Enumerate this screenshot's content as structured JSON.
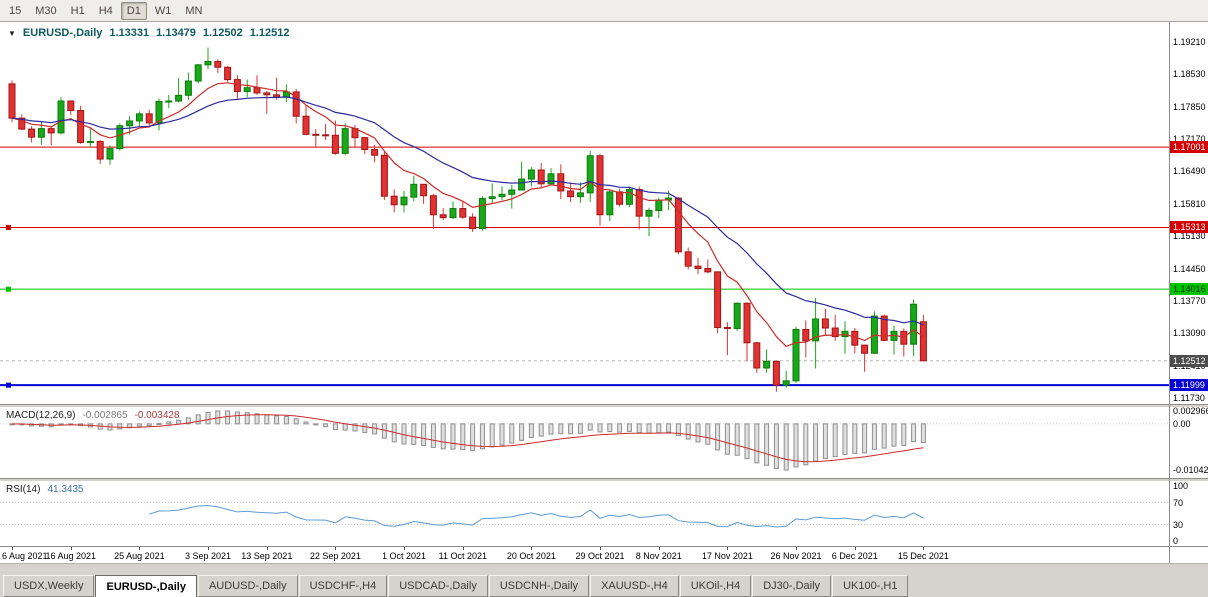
{
  "toolbar": {
    "timeframes": [
      "15",
      "M30",
      "H1",
      "H4",
      "D1",
      "W1",
      "MN"
    ],
    "active": "D1"
  },
  "chart_header": {
    "collapse_icon": "▼",
    "title": "EURUSD-,Daily",
    "open": "1.13331",
    "high": "1.13479",
    "low": "1.12502",
    "close": "1.12512"
  },
  "bottom_tabs": [
    {
      "label": "USDX,Weekly",
      "active": false
    },
    {
      "label": "EURUSD-,Daily",
      "active": true
    },
    {
      "label": "AUDUSD-,Daily",
      "active": false
    },
    {
      "label": "USDCHF-,H4",
      "active": false
    },
    {
      "label": "USDCAD-,Daily",
      "active": false
    },
    {
      "label": "USDCNH-,Daily",
      "active": false
    },
    {
      "label": "XAUUSD-,H4",
      "active": false
    },
    {
      "label": "UKOil-,H4",
      "active": false
    },
    {
      "label": "DJ30-,Daily",
      "active": false
    },
    {
      "label": "UK100-,H1",
      "active": false
    }
  ],
  "chart_data": {
    "type": "candlestick",
    "symbol": "EURUSD-",
    "period": "Daily",
    "bars": 94,
    "ylim": [
      1.116,
      1.1963
    ],
    "grid": false,
    "candle_colors": {
      "up": "#19a819",
      "up_border": "#0c7a0c",
      "down": "#e03232",
      "down_border": "#a31414"
    },
    "y_axis_ticks": [
      "1.19210",
      "1.18530",
      "1.17850",
      "1.17170",
      "1.16490",
      "1.15810",
      "1.15130",
      "1.14450",
      "1.13770",
      "1.13090",
      "1.12410",
      "1.11730"
    ],
    "x_tick_labels": [
      {
        "label": "6 Aug 2021",
        "bar": 0
      },
      {
        "label": "16 Aug 2021",
        "bar": 6
      },
      {
        "label": "25 Aug 2021",
        "bar": 13
      },
      {
        "label": "3 Sep 2021",
        "bar": 20
      },
      {
        "label": "13 Sep 2021",
        "bar": 26
      },
      {
        "label": "22 Sep 2021",
        "bar": 33
      },
      {
        "label": "1 Oct 2021",
        "bar": 40
      },
      {
        "label": "11 Oct 2021",
        "bar": 46
      },
      {
        "label": "20 Oct 2021",
        "bar": 53
      },
      {
        "label": "29 Oct 2021",
        "bar": 60
      },
      {
        "label": "8 Nov 2021",
        "bar": 66
      },
      {
        "label": "17 Nov 2021",
        "bar": 73
      },
      {
        "label": "26 Nov 2021",
        "bar": 80
      },
      {
        "label": "6 Dec 2021",
        "bar": 86
      },
      {
        "label": "15 Dec 2021",
        "bar": 93
      }
    ],
    "moving_averages": [
      {
        "kind": "ema",
        "period": 8,
        "color": "#cf2a27"
      },
      {
        "kind": "ema",
        "period": 20,
        "color": "#2b2ba0"
      }
    ],
    "horizontal_lines": [
      {
        "price": 1.17001,
        "label": "1.17001",
        "color": "#d40000",
        "tag_fg": "#ffffff",
        "width": 1,
        "marker": false
      },
      {
        "price": 1.15313,
        "label": "1.15313",
        "color": "#d40000",
        "tag_fg": "#ffffff",
        "width": 1,
        "marker": true
      },
      {
        "price": 1.14016,
        "label": "1.14016",
        "color": "#00c400",
        "tag_fg": "#003300",
        "width": 1,
        "marker": true
      },
      {
        "price": 1.11999,
        "label": "1.11999",
        "color": "#0000d4",
        "tag_fg": "#ffffff",
        "width": 2,
        "marker": true
      }
    ],
    "current_price": {
      "value": 1.12512,
      "label": "1.12512",
      "line_style": "dashed",
      "tag_bg": "#4d4d4d",
      "tag_fg": "#ffffff"
    },
    "indicators": {
      "macd": {
        "label": "MACD(12,26,9)",
        "params": [
          12,
          26,
          9
        ],
        "value_main": "-0.002865",
        "value_signal": "-0.003428",
        "axis_labels": [
          "0.002966",
          "0.00",
          "-0.01042"
        ],
        "histogram_fill": "#e0e0e0",
        "histogram_border": "#8f8f8f",
        "signal_color": "#cc2a2a"
      },
      "rsi": {
        "label": "RSI(14)",
        "period": 14,
        "value": "41.3435",
        "axis_labels": [
          "100",
          "70",
          "30",
          "0"
        ],
        "levels": [
          70,
          30
        ],
        "color": "#5b9bd5"
      }
    },
    "candles": [
      [
        1.1833,
        1.184,
        1.1752,
        1.1761
      ],
      [
        1.1761,
        1.1769,
        1.1736,
        1.1738
      ],
      [
        1.1738,
        1.1744,
        1.171,
        1.1721
      ],
      [
        1.1721,
        1.1753,
        1.1705,
        1.1739
      ],
      [
        1.1739,
        1.1742,
        1.1704,
        1.173
      ],
      [
        1.173,
        1.1805,
        1.1727,
        1.1797
      ],
      [
        1.1797,
        1.1797,
        1.1767,
        1.1777
      ],
      [
        1.1777,
        1.1787,
        1.1707,
        1.171
      ],
      [
        1.171,
        1.1742,
        1.17,
        1.1712
      ],
      [
        1.1712,
        1.1715,
        1.1665,
        1.1675
      ],
      [
        1.1675,
        1.1704,
        1.1663,
        1.1697
      ],
      [
        1.1697,
        1.175,
        1.1693,
        1.1745
      ],
      [
        1.1745,
        1.1765,
        1.1727,
        1.1755
      ],
      [
        1.1755,
        1.1775,
        1.1743,
        1.177
      ],
      [
        1.177,
        1.1779,
        1.1745,
        1.1751
      ],
      [
        1.1751,
        1.1802,
        1.1735,
        1.1796
      ],
      [
        1.1796,
        1.181,
        1.1782,
        1.1797
      ],
      [
        1.1797,
        1.1845,
        1.1794,
        1.1809
      ],
      [
        1.1809,
        1.1857,
        1.1799,
        1.1839
      ],
      [
        1.1839,
        1.1875,
        1.1834,
        1.1873
      ],
      [
        1.1873,
        1.1909,
        1.1864,
        1.188
      ],
      [
        1.188,
        1.1885,
        1.1856,
        1.1868
      ],
      [
        1.1868,
        1.187,
        1.1837,
        1.1842
      ],
      [
        1.1842,
        1.1851,
        1.1802,
        1.1817
      ],
      [
        1.1817,
        1.1842,
        1.1805,
        1.1825
      ],
      [
        1.1825,
        1.1851,
        1.181,
        1.1814
      ],
      [
        1.1814,
        1.1818,
        1.177,
        1.181
      ],
      [
        1.181,
        1.1846,
        1.18,
        1.1805
      ],
      [
        1.1805,
        1.1832,
        1.1795,
        1.1816
      ],
      [
        1.1816,
        1.1822,
        1.175,
        1.1765
      ],
      [
        1.1765,
        1.1788,
        1.1725,
        1.1727
      ],
      [
        1.1727,
        1.1738,
        1.17,
        1.1726
      ],
      [
        1.1726,
        1.1749,
        1.1715,
        1.1725
      ],
      [
        1.1725,
        1.1756,
        1.1684,
        1.1687
      ],
      [
        1.1687,
        1.175,
        1.1683,
        1.1739
      ],
      [
        1.1739,
        1.1747,
        1.1701,
        1.172
      ],
      [
        1.172,
        1.1722,
        1.1685,
        1.1695
      ],
      [
        1.1695,
        1.1705,
        1.1668,
        1.1683
      ],
      [
        1.1683,
        1.169,
        1.1589,
        1.1597
      ],
      [
        1.1597,
        1.1611,
        1.1563,
        1.1579
      ],
      [
        1.1579,
        1.1608,
        1.1563,
        1.1595
      ],
      [
        1.1595,
        1.164,
        1.1586,
        1.1622
      ],
      [
        1.1622,
        1.1622,
        1.1581,
        1.1598
      ],
      [
        1.1598,
        1.1602,
        1.1529,
        1.1558
      ],
      [
        1.1558,
        1.1572,
        1.1547,
        1.1552
      ],
      [
        1.1552,
        1.1586,
        1.1549,
        1.1571
      ],
      [
        1.1571,
        1.1586,
        1.1549,
        1.1553
      ],
      [
        1.1553,
        1.1561,
        1.1522,
        1.1529
      ],
      [
        1.1529,
        1.1597,
        1.1525,
        1.1592
      ],
      [
        1.1592,
        1.1624,
        1.1582,
        1.1596
      ],
      [
        1.1596,
        1.1618,
        1.1588,
        1.1601
      ],
      [
        1.1601,
        1.1621,
        1.1571,
        1.161
      ],
      [
        1.161,
        1.1669,
        1.1609,
        1.1633
      ],
      [
        1.1633,
        1.1658,
        1.1617,
        1.1652
      ],
      [
        1.1652,
        1.1667,
        1.1616,
        1.1623
      ],
      [
        1.1623,
        1.1656,
        1.162,
        1.1644
      ],
      [
        1.1644,
        1.1664,
        1.1591,
        1.1608
      ],
      [
        1.1608,
        1.1626,
        1.1585,
        1.1596
      ],
      [
        1.1596,
        1.1626,
        1.1583,
        1.1604
      ],
      [
        1.1604,
        1.1692,
        1.1585,
        1.1682
      ],
      [
        1.1682,
        1.1686,
        1.1535,
        1.1558
      ],
      [
        1.1558,
        1.1609,
        1.1545,
        1.1606
      ],
      [
        1.1606,
        1.1613,
        1.1575,
        1.158
      ],
      [
        1.158,
        1.1616,
        1.1574,
        1.1611
      ],
      [
        1.1611,
        1.1617,
        1.1527,
        1.1555
      ],
      [
        1.1555,
        1.1573,
        1.1513,
        1.1567
      ],
      [
        1.1567,
        1.1594,
        1.1551,
        1.1589
      ],
      [
        1.1589,
        1.1609,
        1.1568,
        1.1593
      ],
      [
        1.1593,
        1.1595,
        1.1475,
        1.148
      ],
      [
        1.148,
        1.1489,
        1.1443,
        1.145
      ],
      [
        1.145,
        1.1467,
        1.1433,
        1.1445
      ],
      [
        1.1445,
        1.1464,
        1.1435,
        1.1438
      ],
      [
        1.1438,
        1.1439,
        1.1309,
        1.1321
      ],
      [
        1.1321,
        1.1332,
        1.1263,
        1.1319
      ],
      [
        1.1319,
        1.1374,
        1.1314,
        1.1372
      ],
      [
        1.1372,
        1.1374,
        1.125,
        1.1289
      ],
      [
        1.1289,
        1.1291,
        1.1226,
        1.1236
      ],
      [
        1.1236,
        1.1275,
        1.1226,
        1.125
      ],
      [
        1.125,
        1.1252,
        1.1186,
        1.12
      ],
      [
        1.12,
        1.123,
        1.1195,
        1.1209
      ],
      [
        1.1209,
        1.1323,
        1.1205,
        1.1317
      ],
      [
        1.1317,
        1.1336,
        1.1258,
        1.1293
      ],
      [
        1.1293,
        1.1383,
        1.1235,
        1.1339
      ],
      [
        1.1339,
        1.136,
        1.1305,
        1.132
      ],
      [
        1.132,
        1.1348,
        1.1293,
        1.1302
      ],
      [
        1.1302,
        1.1334,
        1.1266,
        1.1313
      ],
      [
        1.1313,
        1.132,
        1.1267,
        1.1284
      ],
      [
        1.1284,
        1.1285,
        1.1228,
        1.1267
      ],
      [
        1.1267,
        1.1355,
        1.1265,
        1.1345
      ],
      [
        1.1345,
        1.1348,
        1.1293,
        1.1294
      ],
      [
        1.1294,
        1.1325,
        1.1264,
        1.1313
      ],
      [
        1.1313,
        1.1319,
        1.126,
        1.1286
      ],
      [
        1.1286,
        1.138,
        1.1261,
        1.137
      ],
      [
        1.13331,
        1.13479,
        1.12502,
        1.12512
      ]
    ]
  }
}
